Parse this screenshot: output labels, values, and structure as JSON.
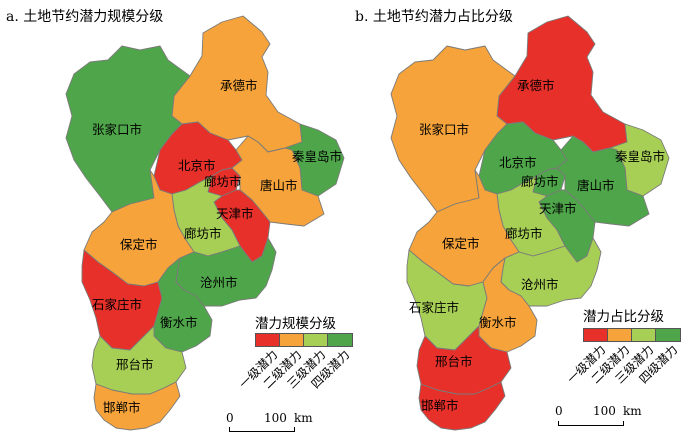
{
  "panels": [
    {
      "id": "a",
      "title": "a. 土地节约潜力规模分级",
      "legend_title": "潜力规模分级",
      "regions": {
        "chengde": {
          "name": "承德市",
          "level": "二级潜力"
        },
        "zhangjiakou": {
          "name": "张家口市",
          "level": "四级潜力"
        },
        "qinhuangdao": {
          "name": "秦皇岛市",
          "level": "四级潜力"
        },
        "beijing": {
          "name": "北京市",
          "level": "一级潜力"
        },
        "langfang_n": {
          "name": "廊坊市",
          "level": "一级潜力"
        },
        "tangshan": {
          "name": "唐山市",
          "level": "二级潜力"
        },
        "tianjin": {
          "name": "天津市",
          "level": "一级潜力"
        },
        "langfang_s": {
          "name": "廊坊市",
          "level": "三级潜力"
        },
        "baoding": {
          "name": "保定市",
          "level": "二级潜力"
        },
        "cangzhou": {
          "name": "沧州市",
          "level": "四级潜力"
        },
        "shijiazhuang": {
          "name": "石家庄市",
          "level": "一级潜力"
        },
        "hengshui": {
          "name": "衡水市",
          "level": "四级潜力"
        },
        "xingtai": {
          "name": "邢台市",
          "level": "三级潜力"
        },
        "handan": {
          "name": "邯郸市",
          "level": "二级潜力"
        }
      }
    },
    {
      "id": "b",
      "title": "b. 土地节约潜力占比分级",
      "legend_title": "潜力占比分级",
      "regions": {
        "chengde": {
          "name": "承德市",
          "level": "一级潜力"
        },
        "zhangjiakou": {
          "name": "张家口市",
          "level": "二级潜力"
        },
        "qinhuangdao": {
          "name": "秦皇岛市",
          "level": "三级潜力"
        },
        "beijing": {
          "name": "北京市",
          "level": "四级潜力"
        },
        "langfang_n": {
          "name": "廊坊市",
          "level": "四级潜力"
        },
        "tangshan": {
          "name": "唐山市",
          "level": "四级潜力"
        },
        "tianjin": {
          "name": "天津市",
          "level": "四级潜力"
        },
        "langfang_s": {
          "name": "廊坊市",
          "level": "三级潜力"
        },
        "baoding": {
          "name": "保定市",
          "level": "二级潜力"
        },
        "cangzhou": {
          "name": "沧州市",
          "level": "三级潜力"
        },
        "shijiazhuang": {
          "name": "石家庄市",
          "level": "三级潜力"
        },
        "hengshui": {
          "name": "衡水市",
          "level": "二级潜力"
        },
        "xingtai": {
          "name": "邢台市",
          "level": "一级潜力"
        },
        "handan": {
          "name": "邯郸市",
          "level": "一级潜力"
        }
      }
    }
  ],
  "legend_levels": [
    {
      "label": "一级潜力",
      "color": "#e8302a"
    },
    {
      "label": "二级潜力",
      "color": "#f5a33a"
    },
    {
      "label": "三级潜力",
      "color": "#a7cf55"
    },
    {
      "label": "四级潜力",
      "color": "#4fa64a"
    }
  ],
  "scale_bar": {
    "zero": "0",
    "distance": "100",
    "unit": "km"
  }
}
